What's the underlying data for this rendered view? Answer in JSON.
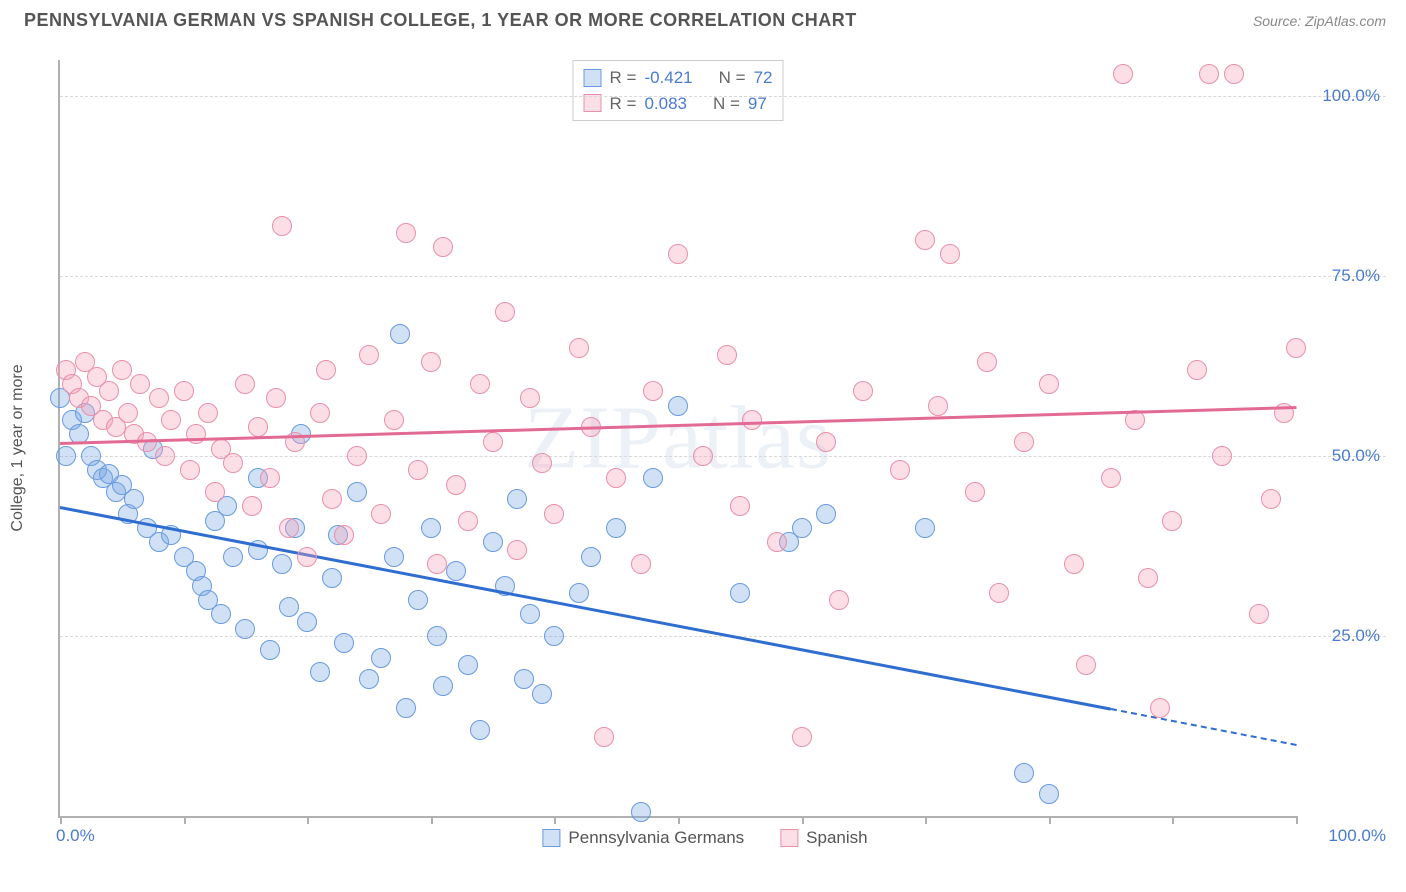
{
  "title": "PENNSYLVANIA GERMAN VS SPANISH COLLEGE, 1 YEAR OR MORE CORRELATION CHART",
  "source": "Source: ZipAtlas.com",
  "watermark": "ZIPatlas",
  "ylabel": "College, 1 year or more",
  "chart": {
    "type": "scatter",
    "xlim": [
      0,
      100
    ],
    "ylim": [
      0,
      105
    ],
    "yticks": [
      25,
      50,
      75,
      100
    ],
    "ytick_labels": [
      "25.0%",
      "50.0%",
      "75.0%",
      "100.0%"
    ],
    "xtick_positions": [
      0,
      10,
      20,
      30,
      40,
      50,
      60,
      70,
      80,
      90,
      100
    ],
    "xlim_labels": [
      "0.0%",
      "100.0%"
    ],
    "background_color": "#ffffff",
    "grid_color": "#d8d8d8",
    "axis_color": "#b0b0b0",
    "label_color": "#4a7bd0",
    "marker_radius": 10,
    "marker_border_width": 1.5,
    "series": [
      {
        "name": "Pennsylvania Germans",
        "fill": "rgba(120,165,225,0.35)",
        "stroke": "#6a9be0",
        "trend_color": "#2f6dd0",
        "trend": {
          "x1": 0,
          "y1": 43,
          "x2": 85,
          "y2": 15,
          "dashed_ext_x2": 100,
          "dashed_ext_y2": 10
        },
        "R": "-0.421",
        "N": "72",
        "points": [
          [
            0,
            58
          ],
          [
            1,
            55
          ],
          [
            1.5,
            53
          ],
          [
            2,
            56
          ],
          [
            0.5,
            50
          ],
          [
            2.5,
            50
          ],
          [
            3,
            48
          ],
          [
            3.5,
            47
          ],
          [
            4,
            47.5
          ],
          [
            4.5,
            45
          ],
          [
            5,
            46
          ],
          [
            5.5,
            42
          ],
          [
            6,
            44
          ],
          [
            7,
            40
          ],
          [
            7.5,
            51
          ],
          [
            8,
            38
          ],
          [
            9,
            39
          ],
          [
            10,
            36
          ],
          [
            11,
            34
          ],
          [
            11.5,
            32
          ],
          [
            12,
            30
          ],
          [
            12.5,
            41
          ],
          [
            13,
            28
          ],
          [
            13.5,
            43
          ],
          [
            14,
            36
          ],
          [
            15,
            26
          ],
          [
            16,
            37
          ],
          [
            16,
            47
          ],
          [
            17,
            23
          ],
          [
            18,
            35
          ],
          [
            18.5,
            29
          ],
          [
            19,
            40
          ],
          [
            19.5,
            53
          ],
          [
            20,
            27
          ],
          [
            21,
            20
          ],
          [
            22,
            33
          ],
          [
            22.5,
            39
          ],
          [
            23,
            24
          ],
          [
            24,
            45
          ],
          [
            25,
            19
          ],
          [
            26,
            22
          ],
          [
            27,
            36
          ],
          [
            27.5,
            67
          ],
          [
            28,
            15
          ],
          [
            29,
            30
          ],
          [
            30,
            40
          ],
          [
            30.5,
            25
          ],
          [
            31,
            18
          ],
          [
            32,
            34
          ],
          [
            33,
            21
          ],
          [
            34,
            12
          ],
          [
            35,
            38
          ],
          [
            36,
            32
          ],
          [
            37,
            44
          ],
          [
            37.5,
            19
          ],
          [
            38,
            28
          ],
          [
            39,
            17
          ],
          [
            40,
            25
          ],
          [
            42,
            31
          ],
          [
            43,
            36
          ],
          [
            45,
            40
          ],
          [
            47,
            0.5
          ],
          [
            48,
            47
          ],
          [
            50,
            57
          ],
          [
            55,
            31
          ],
          [
            59,
            38
          ],
          [
            60,
            40
          ],
          [
            62,
            42
          ],
          [
            70,
            40
          ],
          [
            78,
            6
          ],
          [
            80,
            3
          ]
        ]
      },
      {
        "name": "Spanish",
        "fill": "rgba(245,160,185,0.35)",
        "stroke": "#e890aa",
        "trend_color": "#e36a94",
        "trend": {
          "x1": 0,
          "y1": 52,
          "x2": 100,
          "y2": 57
        },
        "R": "0.083",
        "N": "97",
        "points": [
          [
            0.5,
            62
          ],
          [
            1,
            60
          ],
          [
            1.5,
            58
          ],
          [
            2,
            63
          ],
          [
            2.5,
            57
          ],
          [
            3,
            61
          ],
          [
            3.5,
            55
          ],
          [
            4,
            59
          ],
          [
            4.5,
            54
          ],
          [
            5,
            62
          ],
          [
            5.5,
            56
          ],
          [
            6,
            53
          ],
          [
            6.5,
            60
          ],
          [
            7,
            52
          ],
          [
            8,
            58
          ],
          [
            8.5,
            50
          ],
          [
            9,
            55
          ],
          [
            10,
            59
          ],
          [
            10.5,
            48
          ],
          [
            11,
            53
          ],
          [
            12,
            56
          ],
          [
            12.5,
            45
          ],
          [
            13,
            51
          ],
          [
            14,
            49
          ],
          [
            15,
            60
          ],
          [
            15.5,
            43
          ],
          [
            16,
            54
          ],
          [
            17,
            47
          ],
          [
            17.5,
            58
          ],
          [
            18,
            82
          ],
          [
            18.5,
            40
          ],
          [
            19,
            52
          ],
          [
            20,
            36
          ],
          [
            21,
            56
          ],
          [
            21.5,
            62
          ],
          [
            22,
            44
          ],
          [
            23,
            39
          ],
          [
            24,
            50
          ],
          [
            25,
            64
          ],
          [
            26,
            42
          ],
          [
            27,
            55
          ],
          [
            28,
            81
          ],
          [
            29,
            48
          ],
          [
            30,
            63
          ],
          [
            30.5,
            35
          ],
          [
            31,
            79
          ],
          [
            32,
            46
          ],
          [
            33,
            41
          ],
          [
            34,
            60
          ],
          [
            35,
            52
          ],
          [
            36,
            70
          ],
          [
            37,
            37
          ],
          [
            38,
            58
          ],
          [
            39,
            49
          ],
          [
            40,
            42
          ],
          [
            42,
            65
          ],
          [
            43,
            54
          ],
          [
            44,
            11
          ],
          [
            45,
            47
          ],
          [
            47,
            35
          ],
          [
            48,
            59
          ],
          [
            50,
            78
          ],
          [
            52,
            50
          ],
          [
            54,
            64
          ],
          [
            55,
            43
          ],
          [
            56,
            55
          ],
          [
            58,
            38
          ],
          [
            60,
            11
          ],
          [
            62,
            52
          ],
          [
            63,
            30
          ],
          [
            65,
            59
          ],
          [
            68,
            48
          ],
          [
            70,
            80
          ],
          [
            71,
            57
          ],
          [
            72,
            78
          ],
          [
            74,
            45
          ],
          [
            75,
            63
          ],
          [
            76,
            31
          ],
          [
            78,
            52
          ],
          [
            80,
            60
          ],
          [
            82,
            35
          ],
          [
            83,
            21
          ],
          [
            85,
            47
          ],
          [
            86,
            103
          ],
          [
            87,
            55
          ],
          [
            88,
            33
          ],
          [
            89,
            15
          ],
          [
            90,
            41
          ],
          [
            92,
            62
          ],
          [
            93,
            103
          ],
          [
            94,
            50
          ],
          [
            95,
            103
          ],
          [
            97,
            28
          ],
          [
            98,
            44
          ],
          [
            99,
            56
          ],
          [
            100,
            65
          ]
        ]
      }
    ]
  },
  "stats_box": {
    "rows": [
      {
        "series_idx": 0,
        "R_label": "R =",
        "N_label": "N ="
      },
      {
        "series_idx": 1,
        "R_label": "R =",
        "N_label": "N ="
      }
    ]
  },
  "bottom_legend": [
    {
      "series_idx": 0
    },
    {
      "series_idx": 1
    }
  ]
}
